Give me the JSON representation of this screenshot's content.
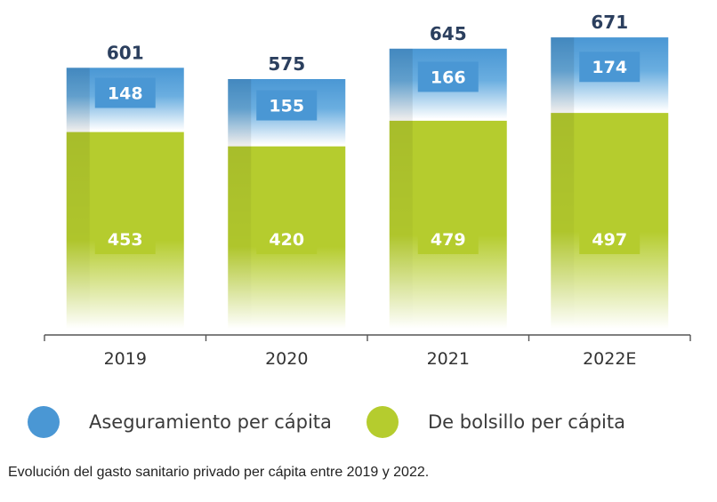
{
  "chart_data": {
    "type": "bar",
    "stacked": true,
    "categories": [
      "2019",
      "2020",
      "2021",
      "2022E"
    ],
    "series": [
      {
        "name": "De bolsillo per cápita",
        "values": [
          453,
          420,
          479,
          497
        ],
        "color": "#b5cc2e"
      },
      {
        "name": "Aseguramiento per cápita",
        "values": [
          148,
          155,
          166,
          174
        ],
        "color": "#4a97d4"
      }
    ],
    "totals": [
      601,
      575,
      645,
      671
    ],
    "ylim": [
      0,
      700
    ],
    "grid": false,
    "legend_position": "bottom"
  },
  "caption": "Evolución del gasto sanitario privado per cápita entre 2019 y 2022.",
  "colors": {
    "total_label": "#2b3f5e",
    "axis": "#555555",
    "tick_label": "#333333",
    "value_label": "#ffffff"
  }
}
